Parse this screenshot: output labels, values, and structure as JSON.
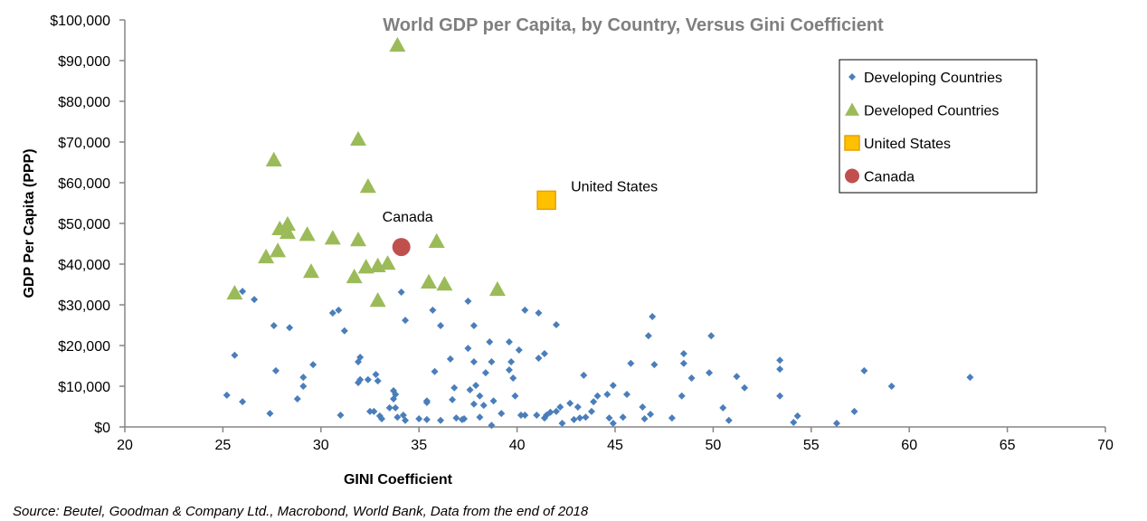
{
  "chart_data": {
    "type": "scatter",
    "title": "World GDP per Capita, by Country, Versus Gini Coefficient",
    "xlabel": "GINI Coefficient",
    "ylabel": "GDP Per Capita (PPP)",
    "xlim": [
      20,
      70
    ],
    "ylim": [
      0,
      100000
    ],
    "xticks": [
      "20",
      "25",
      "30",
      "35",
      "40",
      "45",
      "50",
      "55",
      "60",
      "65",
      "70"
    ],
    "yticks": [
      "$0",
      "$10,000",
      "$20,000",
      "$30,000",
      "$40,000",
      "$50,000",
      "$60,000",
      "$70,000",
      "$80,000",
      "$90,000",
      "$100,000"
    ],
    "grid": false,
    "legend_position": "top-right",
    "series": [
      {
        "name": "Developing Countries",
        "marker": "diamond",
        "color": "#4a7ebb",
        "points": [
          [
            25.2,
            7800
          ],
          [
            25.6,
            17600
          ],
          [
            26,
            33300
          ],
          [
            26,
            6200
          ],
          [
            26.6,
            31300
          ],
          [
            27.4,
            3300
          ],
          [
            27.6,
            24900
          ],
          [
            27.7,
            13800
          ],
          [
            28.4,
            24400
          ],
          [
            28.8,
            6900
          ],
          [
            29.1,
            10000
          ],
          [
            29.1,
            12200
          ],
          [
            29.6,
            15300
          ],
          [
            30.6,
            28000
          ],
          [
            30.9,
            28700
          ],
          [
            31,
            2900
          ],
          [
            31.2,
            23600
          ],
          [
            31.9,
            10900
          ],
          [
            32,
            11600
          ],
          [
            32,
            17100
          ],
          [
            31.9,
            16000
          ],
          [
            32.4,
            11600
          ],
          [
            32.5,
            3800
          ],
          [
            32.7,
            3800
          ],
          [
            32.8,
            12900
          ],
          [
            32.9,
            11300
          ],
          [
            33,
            2700
          ],
          [
            33.1,
            2000
          ],
          [
            33.5,
            4700
          ],
          [
            33.7,
            8900
          ],
          [
            33.7,
            6900
          ],
          [
            33.8,
            8000
          ],
          [
            33.8,
            4700
          ],
          [
            33.9,
            2400
          ],
          [
            34.1,
            33100
          ],
          [
            34.3,
            26200
          ],
          [
            34.3,
            1600
          ],
          [
            34.2,
            2900
          ],
          [
            35,
            2000
          ],
          [
            35.4,
            6400
          ],
          [
            35.4,
            6000
          ],
          [
            35.4,
            1800
          ],
          [
            35.7,
            28700
          ],
          [
            35.8,
            13600
          ],
          [
            36.1,
            24900
          ],
          [
            36.1,
            1600
          ],
          [
            36.6,
            16700
          ],
          [
            36.7,
            6700
          ],
          [
            36.8,
            9600
          ],
          [
            36.9,
            2200
          ],
          [
            37.2,
            1800
          ],
          [
            37.3,
            2000
          ],
          [
            37.5,
            30900
          ],
          [
            37.5,
            19300
          ],
          [
            37.6,
            9100
          ],
          [
            37.8,
            24900
          ],
          [
            37.8,
            5600
          ],
          [
            37.8,
            16000
          ],
          [
            37.9,
            10200
          ],
          [
            38.1,
            2400
          ],
          [
            38.1,
            7600
          ],
          [
            38.3,
            5300
          ],
          [
            38.4,
            13300
          ],
          [
            38.6,
            20900
          ],
          [
            38.7,
            16000
          ],
          [
            38.7,
            400
          ],
          [
            38.8,
            6400
          ],
          [
            39.2,
            3300
          ],
          [
            39.6,
            14000
          ],
          [
            39.6,
            20900
          ],
          [
            39.7,
            16000
          ],
          [
            39.8,
            12000
          ],
          [
            39.9,
            7600
          ],
          [
            40.1,
            18900
          ],
          [
            40.2,
            2900
          ],
          [
            40.4,
            2900
          ],
          [
            40.4,
            28700
          ],
          [
            41.1,
            28000
          ],
          [
            41,
            2900
          ],
          [
            41.1,
            16900
          ],
          [
            41.4,
            18000
          ],
          [
            41.4,
            2200
          ],
          [
            41.5,
            2900
          ],
          [
            41.7,
            3600
          ],
          [
            42,
            25100
          ],
          [
            42,
            3800
          ],
          [
            42.2,
            4900
          ],
          [
            42.3,
            900
          ],
          [
            42.7,
            5800
          ],
          [
            42.9,
            1800
          ],
          [
            43.1,
            4900
          ],
          [
            43.2,
            2200
          ],
          [
            43.4,
            12700
          ],
          [
            43.5,
            2400
          ],
          [
            43.8,
            3800
          ],
          [
            43.9,
            6200
          ],
          [
            44.1,
            7600
          ],
          [
            44.6,
            8000
          ],
          [
            44.7,
            2200
          ],
          [
            44.9,
            10200
          ],
          [
            44.9,
            900
          ],
          [
            45.4,
            2400
          ],
          [
            45.6,
            8000
          ],
          [
            45.8,
            15600
          ],
          [
            46.4,
            4900
          ],
          [
            46.5,
            2000
          ],
          [
            46.7,
            22400
          ],
          [
            46.8,
            3100
          ],
          [
            46.9,
            27100
          ],
          [
            47,
            15300
          ],
          [
            47.9,
            2200
          ],
          [
            48.4,
            7600
          ],
          [
            48.5,
            18000
          ],
          [
            48.5,
            15600
          ],
          [
            48.9,
            12000
          ],
          [
            49.8,
            13300
          ],
          [
            49.9,
            22400
          ],
          [
            50.5,
            4700
          ],
          [
            50.8,
            1600
          ],
          [
            51.2,
            12400
          ],
          [
            51.6,
            9600
          ],
          [
            53.4,
            16400
          ],
          [
            53.4,
            14200
          ],
          [
            53.4,
            7600
          ],
          [
            54.1,
            1100
          ],
          [
            54.3,
            2700
          ],
          [
            56.3,
            900
          ],
          [
            57.2,
            3800
          ],
          [
            57.7,
            13800
          ],
          [
            59.1,
            10000
          ],
          [
            63.1,
            12200
          ]
        ]
      },
      {
        "name": "Developed Countries",
        "marker": "triangle",
        "color": "#9bbb59",
        "points": [
          [
            33.9,
            93800
          ],
          [
            31.9,
            70700
          ],
          [
            27.6,
            65600
          ],
          [
            32.4,
            59100
          ],
          [
            28.3,
            49800
          ],
          [
            27.9,
            48700
          ],
          [
            28.3,
            47800
          ],
          [
            29.3,
            47300
          ],
          [
            30.6,
            46400
          ],
          [
            31.9,
            46000
          ],
          [
            35.9,
            45600
          ],
          [
            27.8,
            43300
          ],
          [
            27.2,
            41800
          ],
          [
            33.4,
            40200
          ],
          [
            32.9,
            39600
          ],
          [
            32.3,
            39300
          ],
          [
            29.5,
            38200
          ],
          [
            31.7,
            36900
          ],
          [
            35.5,
            35600
          ],
          [
            36.3,
            35100
          ],
          [
            39,
            33800
          ],
          [
            25.6,
            32900
          ],
          [
            32.9,
            31100
          ]
        ]
      },
      {
        "name": "United States",
        "marker": "square",
        "color": "#ffc000",
        "points": [
          [
            41.5,
            55700
          ]
        ],
        "label": "United States"
      },
      {
        "name": "Canada",
        "marker": "circle",
        "color": "#c0504d",
        "points": [
          [
            34.1,
            44200
          ]
        ],
        "label": "Canada"
      }
    ],
    "source": "Source: Beutel, Goodman & Company Ltd., Macrobond, World Bank, Data from the end of 2018"
  }
}
